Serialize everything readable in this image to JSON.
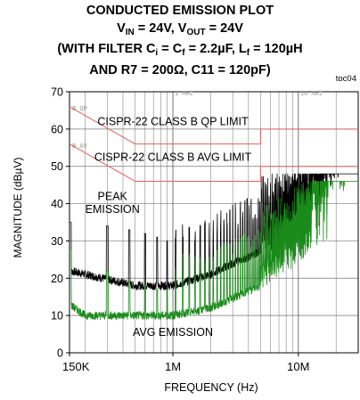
{
  "chart_data": {
    "type": "line",
    "title_lines": [
      {
        "parts": [
          {
            "t": "CONDUCTED EMISSION PLOT"
          }
        ]
      },
      {
        "parts": [
          {
            "t": "V"
          },
          {
            "t": "IN",
            "sub": true
          },
          {
            "t": " = 24V, V"
          },
          {
            "t": "OUT",
            "sub": true
          },
          {
            "t": " = 24V"
          }
        ]
      },
      {
        "parts": [
          {
            "t": "(WITH FILTER C"
          },
          {
            "t": "i",
            "sub": true
          },
          {
            "t": " = C"
          },
          {
            "t": "f",
            "sub": true
          },
          {
            "t": " = 2.2µF, L"
          },
          {
            "t": "f",
            "sub": true
          },
          {
            "t": " = 120µH"
          }
        ]
      },
      {
        "parts": [
          {
            "t": "AND R7 = 200Ω, C11 = 120pF)"
          }
        ]
      }
    ],
    "tag": "toc04",
    "xlabel": "FREQUENCY (Hz)",
    "ylabel": "MAGNITUDE (dBµV)",
    "xscale": "log",
    "xlim": [
      150000,
      30000000
    ],
    "ylim": [
      0,
      70
    ],
    "x_tick_values": [
      150000,
      1000000,
      10000000
    ],
    "x_tick_labels": [
      "150K",
      "1M",
      "10M"
    ],
    "y_tick_values": [
      0,
      10,
      20,
      30,
      40,
      50,
      60,
      70
    ],
    "y_tick_labels": [
      "0",
      "10",
      "20",
      "30",
      "40",
      "50",
      "60",
      "70"
    ],
    "grid": "log minor gridlines",
    "faint_labels": [
      "1 MHz",
      "10 MHz",
      "B QP",
      "B AV"
    ],
    "annotations": [
      {
        "text": "CISPR-22 CLASS B QP LIMIT",
        "x": 1000000,
        "y": 61
      },
      {
        "text": "CISPR-22 CLASS B AVG LIMIT",
        "x": 1000000,
        "y": 51.5
      },
      {
        "text": "PEAK",
        "x": 330000,
        "y": 41
      },
      {
        "text": "EMISSION",
        "x": 330000,
        "y": 37.5
      },
      {
        "text": "AVG EMISSION",
        "x": 1000000,
        "y": 4.5
      }
    ],
    "limit_lines": [
      {
        "name": "CISPR-22 CLASS B QP LIMIT",
        "color": "#e06060",
        "x": [
          150000,
          500000,
          5000000,
          5000000,
          30000000
        ],
        "y": [
          66,
          56,
          56,
          60,
          60
        ]
      },
      {
        "name": "CISPR-22 CLASS B AVG LIMIT",
        "color": "#e06060",
        "x": [
          150000,
          500000,
          5000000,
          5000000,
          30000000
        ],
        "y": [
          56,
          46,
          46,
          50,
          50
        ]
      }
    ],
    "series": [
      {
        "name": "PEAK EMISSION",
        "color": "#000000",
        "floor": [
          [
            150000,
            22
          ],
          [
            500000,
            18
          ],
          [
            1000000,
            18
          ],
          [
            2000000,
            21
          ],
          [
            3000000,
            24
          ],
          [
            5000000,
            27
          ],
          [
            10000000,
            31
          ],
          [
            20000000,
            37
          ],
          [
            30000000,
            40
          ]
        ],
        "peak_every_hz": 150000,
        "peak_dB": [
          35,
          34,
          33,
          32,
          31,
          30
        ],
        "near_limit_max": 48
      },
      {
        "name": "AVG EMISSION",
        "color": "#1a8a1a",
        "floor": [
          [
            150000,
            13
          ],
          [
            200000,
            10
          ],
          [
            1000000,
            10
          ],
          [
            2000000,
            12
          ],
          [
            5000000,
            18
          ],
          [
            10000000,
            24
          ],
          [
            20000000,
            33
          ],
          [
            30000000,
            38
          ]
        ],
        "peak_every_hz": 150000,
        "peak_dB": [
          28,
          22,
          19,
          18,
          17,
          17
        ],
        "near_limit_max": 46
      }
    ]
  }
}
